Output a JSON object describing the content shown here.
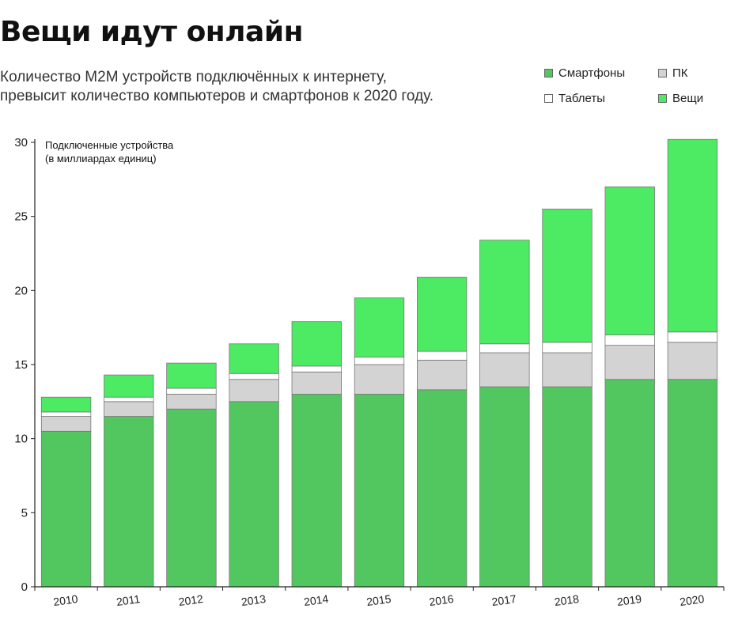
{
  "header": {
    "title": "Вещи идут онлайн",
    "subtitle_line1": "Количество М2М устройств  подключённых к интернету,",
    "subtitle_line2": "превысит количество компьютеров и смартфонов к 2020 году."
  },
  "legend": [
    {
      "label": "Смартфоны",
      "color": "#52C75F"
    },
    {
      "label": "ПК",
      "color": "#D3D3D3"
    },
    {
      "label": "Таблеты",
      "color": "#FFFFFF"
    },
    {
      "label": "Вещи",
      "color": "#4CEB63"
    }
  ],
  "chart_data": {
    "type": "bar",
    "stacked": true,
    "title": "Вещи идут онлайн",
    "ylabel_line1": "Подключенные устройства",
    "ylabel_line2": "(в миллиардах единиц)",
    "xlabel": "",
    "ylim": [
      0,
      30
    ],
    "yticks": [
      0,
      5,
      10,
      15,
      20,
      25,
      30
    ],
    "categories": [
      "2010",
      "2011",
      "2012",
      "2013",
      "2014",
      "2015",
      "2016",
      "2017",
      "2018",
      "2019",
      "2020"
    ],
    "series": [
      {
        "name": "Смартфоны",
        "color": "#52C75F",
        "values": [
          10.5,
          11.5,
          12.0,
          12.5,
          13.0,
          13.0,
          13.3,
          13.5,
          13.5,
          14.0,
          14.0
        ]
      },
      {
        "name": "ПК",
        "color": "#D3D3D3",
        "values": [
          1.0,
          1.0,
          1.0,
          1.5,
          1.5,
          2.0,
          2.0,
          2.3,
          2.3,
          2.3,
          2.5
        ]
      },
      {
        "name": "Таблеты",
        "color": "#FFFFFF",
        "values": [
          0.3,
          0.3,
          0.4,
          0.4,
          0.4,
          0.5,
          0.6,
          0.6,
          0.7,
          0.7,
          0.7
        ]
      },
      {
        "name": "Вещи",
        "color": "#4CEB63",
        "values": [
          1.0,
          1.5,
          1.7,
          2.0,
          3.0,
          4.0,
          5.0,
          7.0,
          9.0,
          10.0,
          13.0
        ]
      }
    ]
  }
}
